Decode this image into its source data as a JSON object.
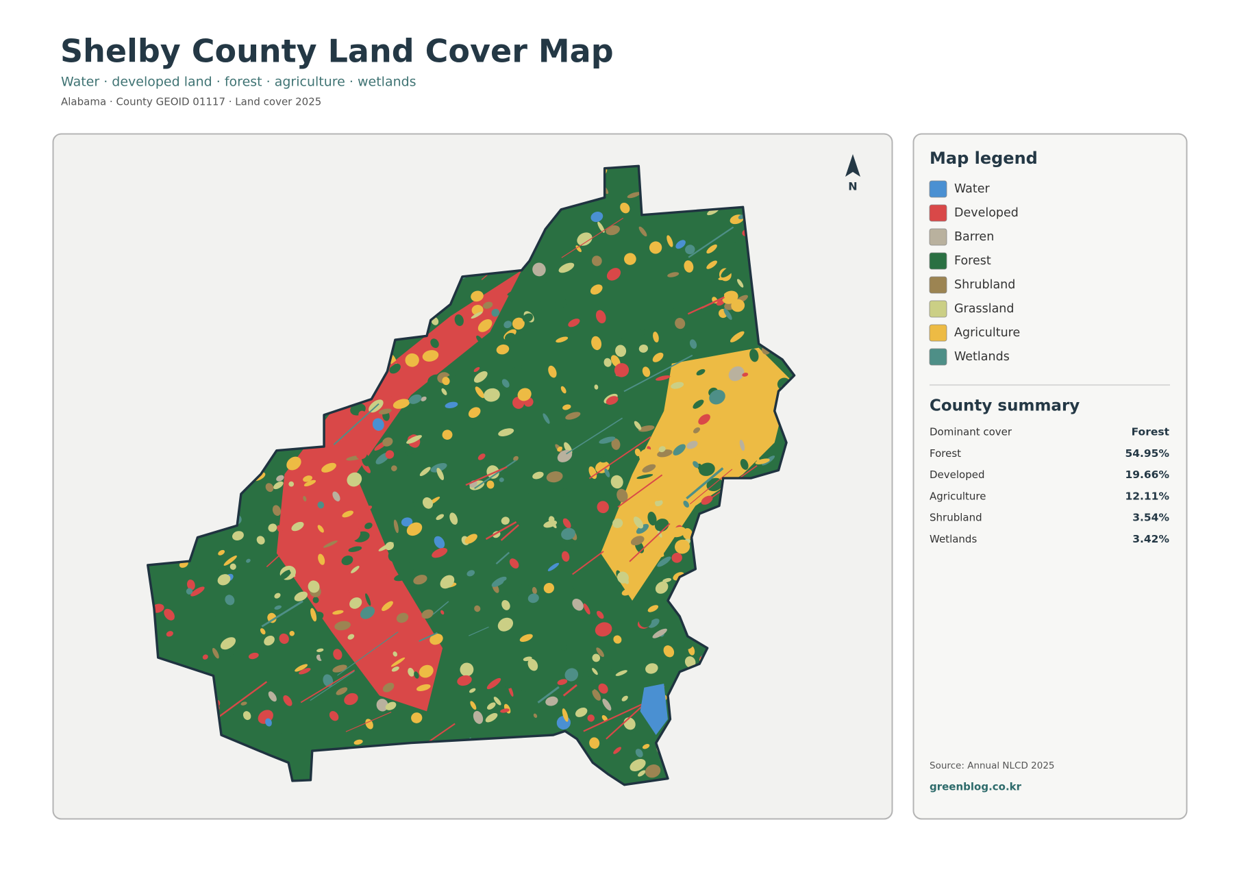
{
  "header": {
    "title": "Shelby County Land Cover Map",
    "subtitle": "Water · developed land · forest · agriculture · wetlands",
    "meta": "Alabama · County GEOID 01117 · Land cover 2025"
  },
  "map": {
    "north_label": "N"
  },
  "legend": {
    "title": "Map legend",
    "items": [
      {
        "label": "Water",
        "color": "#4a90d2"
      },
      {
        "label": "Developed",
        "color": "#d94848"
      },
      {
        "label": "Barren",
        "color": "#b9b19e"
      },
      {
        "label": "Forest",
        "color": "#2a7042"
      },
      {
        "label": "Shrubland",
        "color": "#9c8452"
      },
      {
        "label": "Grassland",
        "color": "#cbcf85"
      },
      {
        "label": "Agriculture",
        "color": "#edbb44"
      },
      {
        "label": "Wetlands",
        "color": "#4e8f87"
      }
    ]
  },
  "summary": {
    "title": "County summary",
    "rows": [
      [
        "Dominant cover",
        "Forest"
      ],
      [
        "Forest",
        "54.95%"
      ],
      [
        "Developed",
        "19.66%"
      ],
      [
        "Agriculture",
        "12.11%"
      ],
      [
        "Shrubland",
        "3.54%"
      ],
      [
        "Wetlands",
        "3.42%"
      ]
    ]
  },
  "footer": {
    "source": "Source: Annual NLCD 2025",
    "site": "greenblog.co.kr"
  }
}
